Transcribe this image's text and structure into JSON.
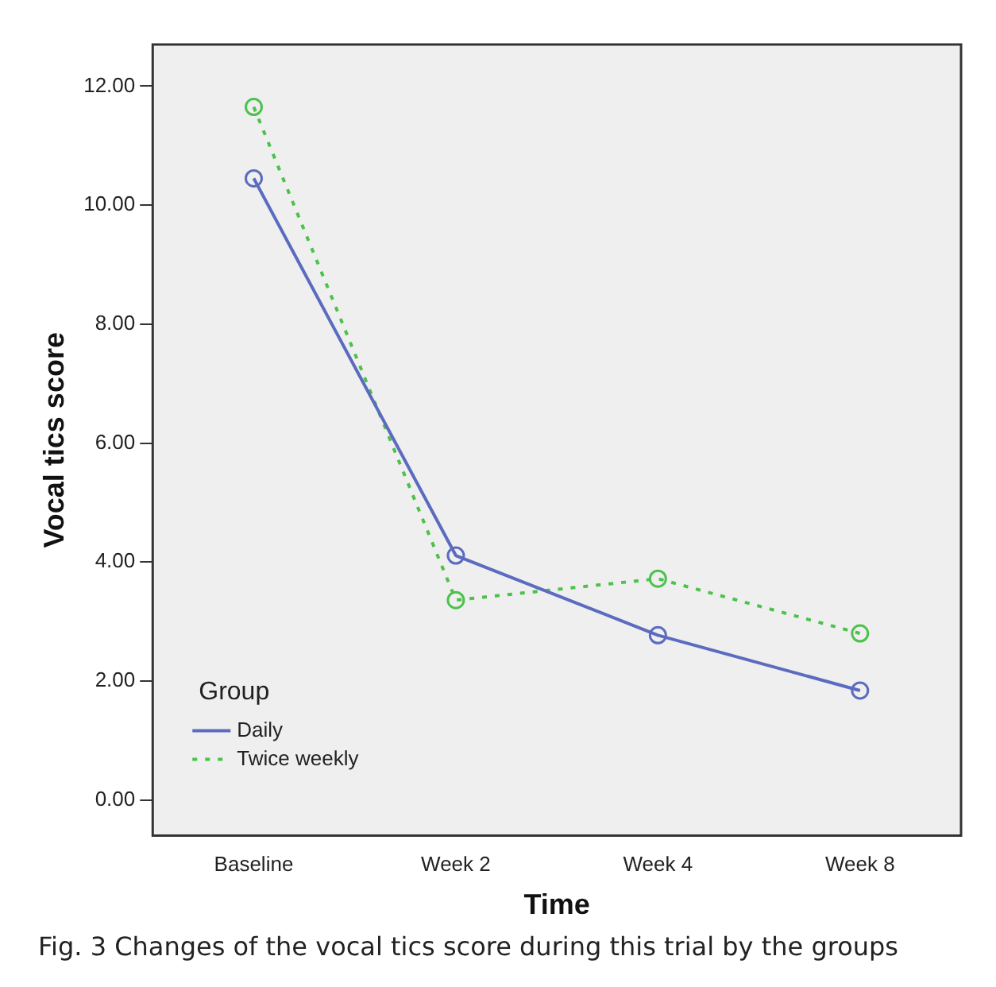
{
  "chart_data": {
    "type": "line",
    "xlabel": "Time",
    "ylabel": "Vocal tics score",
    "legend_title": "Group",
    "categories": [
      "Baseline",
      "Week 2",
      "Week 4",
      "Week 8"
    ],
    "series": [
      {
        "name": "Daily",
        "color": "#5b6bbf",
        "line_style": "solid",
        "values": [
          10.45,
          4.11,
          2.77,
          1.84
        ]
      },
      {
        "name": "Twice weekly",
        "color": "#4cc24c",
        "line_style": "dotted",
        "values": [
          11.65,
          3.36,
          3.72,
          2.8
        ]
      }
    ],
    "ylim": [
      -0.6,
      12.7
    ],
    "yticks": [
      {
        "value": 0,
        "label": "0.00"
      },
      {
        "value": 2,
        "label": "2.00"
      },
      {
        "value": 4,
        "label": "4.00"
      },
      {
        "value": 6,
        "label": "6.00"
      },
      {
        "value": 8,
        "label": "8.00"
      },
      {
        "value": 10,
        "label": "10.00"
      },
      {
        "value": 12,
        "label": "12.00"
      }
    ],
    "grid": false,
    "legend": "bottom left",
    "marker": "circle",
    "annotations": [
      "Fig. 3  Changes of the vocal tics score during this trial by the groups"
    ]
  }
}
